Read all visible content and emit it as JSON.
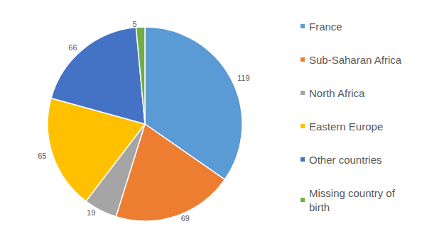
{
  "chart_data": {
    "type": "pie",
    "categories": [
      "France",
      "Sub-Saharan Africa",
      "North Africa",
      "Eastern Europe",
      "Other countries",
      "Missing country of birth"
    ],
    "values": [
      119,
      69,
      19,
      65,
      66,
      5
    ],
    "colors": [
      "#5b9bd5",
      "#ed7d31",
      "#a5a5a5",
      "#ffc000",
      "#4472c4",
      "#70ad47"
    ],
    "data_labels": true,
    "legend": "right"
  }
}
